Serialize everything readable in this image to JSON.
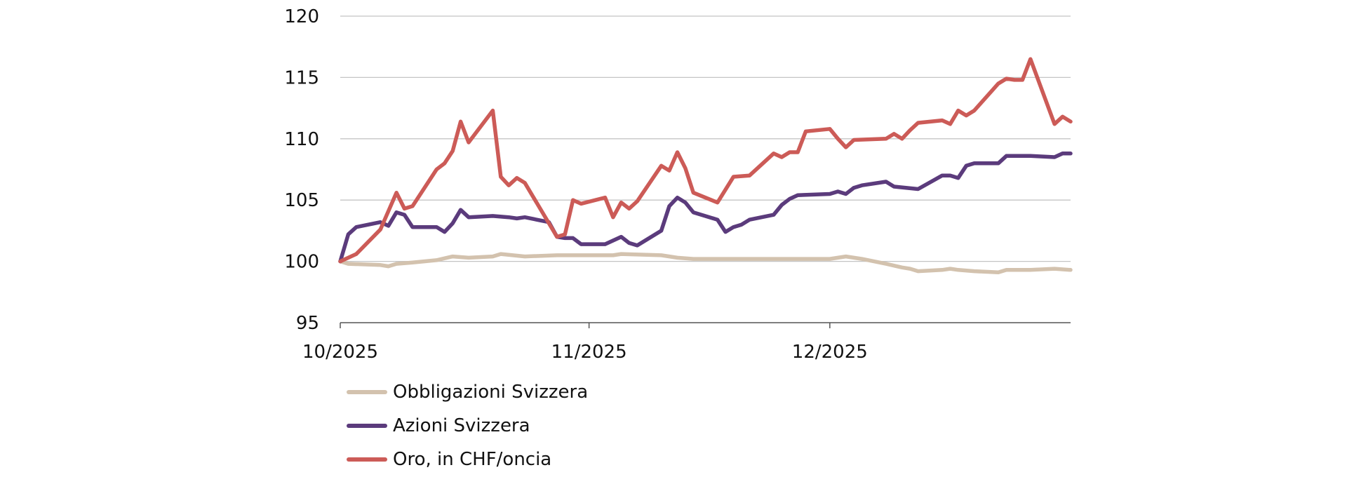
{
  "chart_data": {
    "type": "line",
    "title": "",
    "xlabel": "",
    "ylabel": "",
    "ylim": [
      95,
      120
    ],
    "yticks": [
      95,
      100,
      105,
      110,
      115,
      120
    ],
    "xlim": [
      "2025-10-01",
      "2025-12-31"
    ],
    "xticks": [
      {
        "date": "2025-10-01",
        "label": "10/2025"
      },
      {
        "date": "2025-11-01",
        "label": "11/2025"
      },
      {
        "date": "2025-12-01",
        "label": "12/2025"
      }
    ],
    "grid": "horizontal",
    "legend": "bottom-left",
    "series": [
      {
        "name": "Obbligazioni Svizzera",
        "color": "#d3c2ae",
        "points": [
          [
            "2025-10-01",
            100.0
          ],
          [
            "2025-10-02",
            99.8
          ],
          [
            "2025-10-06",
            99.7
          ],
          [
            "2025-10-07",
            99.6
          ],
          [
            "2025-10-08",
            99.8
          ],
          [
            "2025-10-10",
            99.9
          ],
          [
            "2025-10-13",
            100.1
          ],
          [
            "2025-10-15",
            100.4
          ],
          [
            "2025-10-17",
            100.3
          ],
          [
            "2025-10-20",
            100.4
          ],
          [
            "2025-10-21",
            100.6
          ],
          [
            "2025-10-24",
            100.4
          ],
          [
            "2025-10-28",
            100.5
          ],
          [
            "2025-10-31",
            100.5
          ],
          [
            "2025-11-04",
            100.5
          ],
          [
            "2025-11-05",
            100.6
          ],
          [
            "2025-11-10",
            100.5
          ],
          [
            "2025-11-12",
            100.3
          ],
          [
            "2025-11-14",
            100.2
          ],
          [
            "2025-11-17",
            100.2
          ],
          [
            "2025-11-20",
            100.2
          ],
          [
            "2025-11-24",
            100.2
          ],
          [
            "2025-11-28",
            100.2
          ],
          [
            "2025-12-01",
            100.2
          ],
          [
            "2025-12-03",
            100.4
          ],
          [
            "2025-12-05",
            100.2
          ],
          [
            "2025-12-08",
            99.8
          ],
          [
            "2025-12-10",
            99.5
          ],
          [
            "2025-12-11",
            99.4
          ],
          [
            "2025-12-12",
            99.2
          ],
          [
            "2025-12-15",
            99.3
          ],
          [
            "2025-12-16",
            99.4
          ],
          [
            "2025-12-17",
            99.3
          ],
          [
            "2025-12-19",
            99.2
          ],
          [
            "2025-12-22",
            99.1
          ],
          [
            "2025-12-23",
            99.3
          ],
          [
            "2025-12-26",
            99.3
          ],
          [
            "2025-12-29",
            99.4
          ],
          [
            "2025-12-31",
            99.3
          ]
        ]
      },
      {
        "name": "Azioni Svizzera",
        "color": "#5b3b7c",
        "points": [
          [
            "2025-10-01",
            100.0
          ],
          [
            "2025-10-02",
            102.2
          ],
          [
            "2025-10-03",
            102.8
          ],
          [
            "2025-10-06",
            103.2
          ],
          [
            "2025-10-07",
            102.9
          ],
          [
            "2025-10-08",
            104.0
          ],
          [
            "2025-10-09",
            103.8
          ],
          [
            "2025-10-10",
            102.8
          ],
          [
            "2025-10-13",
            102.8
          ],
          [
            "2025-10-14",
            102.4
          ],
          [
            "2025-10-15",
            103.1
          ],
          [
            "2025-10-16",
            104.2
          ],
          [
            "2025-10-17",
            103.6
          ],
          [
            "2025-10-20",
            103.7
          ],
          [
            "2025-10-22",
            103.6
          ],
          [
            "2025-10-23",
            103.5
          ],
          [
            "2025-10-24",
            103.6
          ],
          [
            "2025-10-27",
            103.2
          ],
          [
            "2025-10-28",
            102.0
          ],
          [
            "2025-10-29",
            101.9
          ],
          [
            "2025-10-30",
            101.9
          ],
          [
            "2025-10-31",
            101.4
          ],
          [
            "2025-11-03",
            101.4
          ],
          [
            "2025-11-05",
            102.0
          ],
          [
            "2025-11-06",
            101.5
          ],
          [
            "2025-11-07",
            101.3
          ],
          [
            "2025-11-10",
            102.5
          ],
          [
            "2025-11-11",
            104.5
          ],
          [
            "2025-11-12",
            105.2
          ],
          [
            "2025-11-13",
            104.8
          ],
          [
            "2025-11-14",
            104.0
          ],
          [
            "2025-11-17",
            103.4
          ],
          [
            "2025-11-18",
            102.4
          ],
          [
            "2025-11-19",
            102.8
          ],
          [
            "2025-11-20",
            103.0
          ],
          [
            "2025-11-21",
            103.4
          ],
          [
            "2025-11-24",
            103.8
          ],
          [
            "2025-11-25",
            104.6
          ],
          [
            "2025-11-26",
            105.1
          ],
          [
            "2025-11-27",
            105.4
          ],
          [
            "2025-12-01",
            105.5
          ],
          [
            "2025-12-02",
            105.7
          ],
          [
            "2025-12-03",
            105.5
          ],
          [
            "2025-12-04",
            106.0
          ],
          [
            "2025-12-05",
            106.2
          ],
          [
            "2025-12-08",
            106.5
          ],
          [
            "2025-12-09",
            106.1
          ],
          [
            "2025-12-12",
            105.9
          ],
          [
            "2025-12-15",
            107.0
          ],
          [
            "2025-12-16",
            107.0
          ],
          [
            "2025-12-17",
            106.8
          ],
          [
            "2025-12-18",
            107.8
          ],
          [
            "2025-12-19",
            108.0
          ],
          [
            "2025-12-22",
            108.0
          ],
          [
            "2025-12-23",
            108.6
          ],
          [
            "2025-12-26",
            108.6
          ],
          [
            "2025-12-29",
            108.5
          ],
          [
            "2025-12-30",
            108.8
          ],
          [
            "2025-12-31",
            108.8
          ]
        ]
      },
      {
        "name": "Oro, in CHF/oncia",
        "color": "#cc5b57",
        "points": [
          [
            "2025-10-01",
            100.0
          ],
          [
            "2025-10-03",
            100.6
          ],
          [
            "2025-10-06",
            102.6
          ],
          [
            "2025-10-08",
            105.6
          ],
          [
            "2025-10-09",
            104.3
          ],
          [
            "2025-10-10",
            104.5
          ],
          [
            "2025-10-13",
            107.5
          ],
          [
            "2025-10-14",
            108.0
          ],
          [
            "2025-10-15",
            109.0
          ],
          [
            "2025-10-16",
            111.4
          ],
          [
            "2025-10-17",
            109.7
          ],
          [
            "2025-10-20",
            112.3
          ],
          [
            "2025-10-21",
            106.9
          ],
          [
            "2025-10-22",
            106.2
          ],
          [
            "2025-10-23",
            106.8
          ],
          [
            "2025-10-24",
            106.4
          ],
          [
            "2025-10-28",
            102.0
          ],
          [
            "2025-10-29",
            102.2
          ],
          [
            "2025-10-30",
            105.0
          ],
          [
            "2025-10-31",
            104.7
          ],
          [
            "2025-11-03",
            105.2
          ],
          [
            "2025-11-04",
            103.6
          ],
          [
            "2025-11-05",
            104.8
          ],
          [
            "2025-11-06",
            104.3
          ],
          [
            "2025-11-07",
            104.9
          ],
          [
            "2025-11-10",
            107.8
          ],
          [
            "2025-11-11",
            107.4
          ],
          [
            "2025-11-12",
            108.9
          ],
          [
            "2025-11-13",
            107.6
          ],
          [
            "2025-11-14",
            105.6
          ],
          [
            "2025-11-17",
            104.8
          ],
          [
            "2025-11-19",
            106.9
          ],
          [
            "2025-11-21",
            107.0
          ],
          [
            "2025-11-24",
            108.8
          ],
          [
            "2025-11-25",
            108.5
          ],
          [
            "2025-11-26",
            108.9
          ],
          [
            "2025-11-27",
            108.9
          ],
          [
            "2025-11-28",
            110.6
          ],
          [
            "2025-12-01",
            110.8
          ],
          [
            "2025-12-02",
            110.0
          ],
          [
            "2025-12-03",
            109.3
          ],
          [
            "2025-12-04",
            109.9
          ],
          [
            "2025-12-08",
            110.0
          ],
          [
            "2025-12-09",
            110.4
          ],
          [
            "2025-12-10",
            110.0
          ],
          [
            "2025-12-11",
            110.7
          ],
          [
            "2025-12-12",
            111.3
          ],
          [
            "2025-12-15",
            111.5
          ],
          [
            "2025-12-16",
            111.2
          ],
          [
            "2025-12-17",
            112.3
          ],
          [
            "2025-12-18",
            111.9
          ],
          [
            "2025-12-19",
            112.3
          ],
          [
            "2025-12-22",
            114.5
          ],
          [
            "2025-12-23",
            114.9
          ],
          [
            "2025-12-24",
            114.8
          ],
          [
            "2025-12-25",
            114.8
          ],
          [
            "2025-12-26",
            116.5
          ],
          [
            "2025-12-29",
            111.2
          ],
          [
            "2025-12-30",
            111.8
          ],
          [
            "2025-12-31",
            111.4
          ]
        ]
      }
    ]
  }
}
